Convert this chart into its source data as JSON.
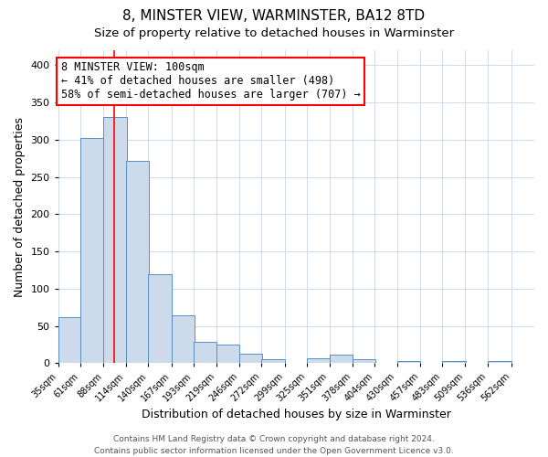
{
  "title": "8, MINSTER VIEW, WARMINSTER, BA12 8TD",
  "subtitle": "Size of property relative to detached houses in Warminster",
  "xlabel": "Distribution of detached houses by size in Warminster",
  "ylabel": "Number of detached properties",
  "bar_left_edges": [
    35,
    61,
    88,
    114,
    140,
    167,
    193,
    219,
    246,
    272,
    299,
    325,
    351,
    378,
    404,
    430,
    457,
    483,
    509,
    536
  ],
  "bar_heights": [
    62,
    302,
    330,
    272,
    120,
    64,
    29,
    25,
    13,
    5,
    0,
    7,
    11,
    5,
    0,
    3,
    0,
    3,
    0,
    3
  ],
  "bin_width": 27,
  "xtick_labels": [
    "35sqm",
    "61sqm",
    "88sqm",
    "114sqm",
    "140sqm",
    "167sqm",
    "193sqm",
    "219sqm",
    "246sqm",
    "272sqm",
    "299sqm",
    "325sqm",
    "351sqm",
    "378sqm",
    "404sqm",
    "430sqm",
    "457sqm",
    "483sqm",
    "509sqm",
    "536sqm",
    "562sqm"
  ],
  "ylim": [
    0,
    420
  ],
  "yticks": [
    0,
    50,
    100,
    150,
    200,
    250,
    300,
    350,
    400
  ],
  "xlim_left": 35,
  "xlim_right": 590,
  "bar_color": "#ccdaeb",
  "bar_edge_color": "#5590c4",
  "red_line_x": 100,
  "annotation_line1": "8 MINSTER VIEW: 100sqm",
  "annotation_line2": "← 41% of detached houses are smaller (498)",
  "annotation_line3": "58% of semi-detached houses are larger (707) →",
  "annotation_box_edge_color": "red",
  "annotation_box_bg": "white",
  "grid_color": "#d0d8ec",
  "footer_text": "Contains HM Land Registry data © Crown copyright and database right 2024.\nContains public sector information licensed under the Open Government Licence v3.0.",
  "title_fontsize": 11,
  "subtitle_fontsize": 9.5,
  "xlabel_fontsize": 9,
  "ylabel_fontsize": 9,
  "footer_fontsize": 6.5,
  "annot_fontsize": 8.5,
  "tick_fontsize": 7
}
